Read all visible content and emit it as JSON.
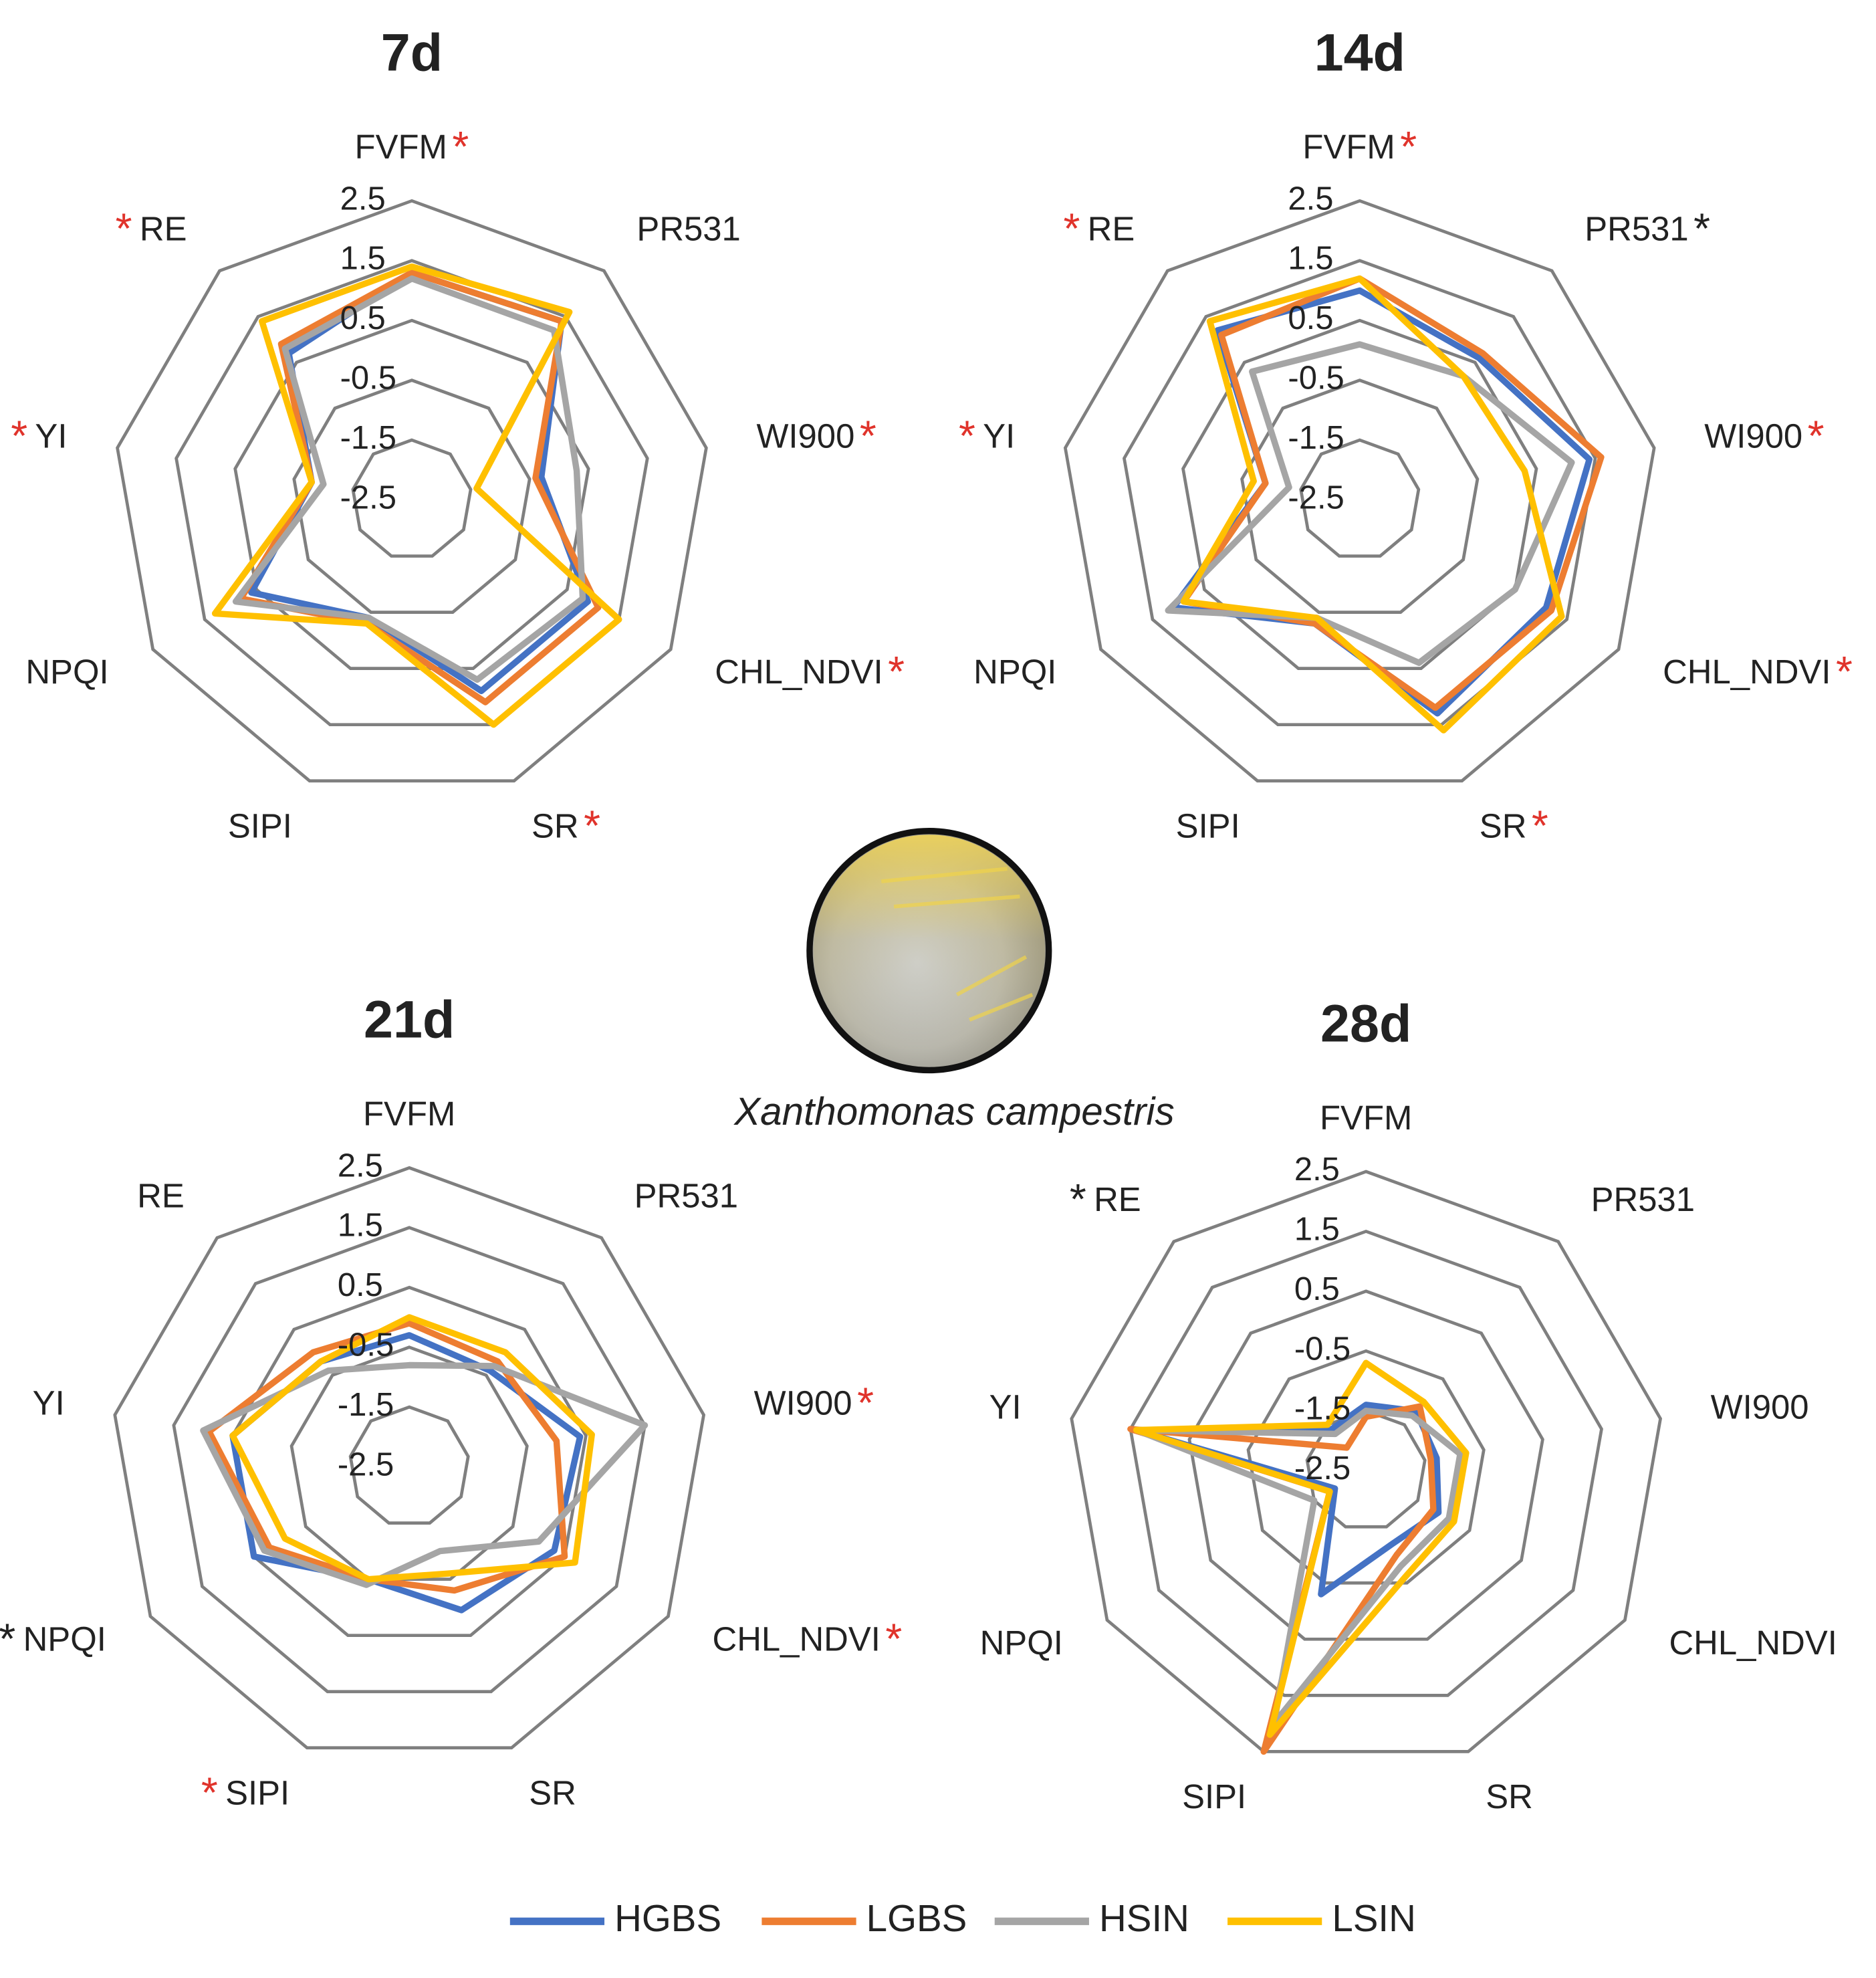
{
  "chart_data": [
    {
      "type": "radar",
      "title": "7d",
      "categories": [
        "FVFM",
        "PR531",
        "WI900",
        "CHL_NDVI",
        "SR",
        "SIPI",
        "NPQI",
        "YI",
        "RE"
      ],
      "marks": [
        {
          "text": "*",
          "color": "#e0332b"
        },
        null,
        {
          "text": "*",
          "color": "#e0332b"
        },
        {
          "text": "*",
          "color": "#e0332b"
        },
        {
          "text": "*",
          "color": "#e0332b"
        },
        null,
        null,
        {
          "text": "*",
          "color": "#e0332b"
        },
        {
          "text": "*",
          "color": "#e0332b"
        }
      ],
      "ylim": [
        -2.5,
        2.5
      ],
      "yticks": [
        2.5,
        1.5,
        0.5,
        -0.5,
        -1.5,
        -2.5
      ],
      "series": [
        {
          "name": "HGBS",
          "color": "#4472c4",
          "values": [
            1.3,
            1.4,
            -0.3,
            0.9,
            0.9,
            -0.4,
            0.6,
            -0.8,
            0.7
          ]
        },
        {
          "name": "LGBS",
          "color": "#ed7d31",
          "values": [
            1.3,
            1.4,
            -0.4,
            1.1,
            1.1,
            -0.3,
            0.8,
            -0.8,
            0.9
          ]
        },
        {
          "name": "HSIN",
          "color": "#a5a5a5",
          "values": [
            1.2,
            1.2,
            0.3,
            0.8,
            0.7,
            -0.4,
            0.9,
            -1.0,
            0.8
          ]
        },
        {
          "name": "LSIN",
          "color": "#ffc000",
          "values": [
            1.4,
            1.6,
            -1.4,
            1.5,
            1.5,
            -0.3,
            1.3,
            -0.8,
            1.4
          ]
        }
      ]
    },
    {
      "type": "radar",
      "title": "14d",
      "categories": [
        "FVFM",
        "PR531",
        "WI900",
        "CHL_NDVI",
        "SR",
        "SIPI",
        "NPQI",
        "YI",
        "RE"
      ],
      "marks": [
        {
          "text": "*",
          "color": "#e0332b"
        },
        {
          "text": "*",
          "color": "#222222"
        },
        {
          "text": "*",
          "color": "#e0332b"
        },
        {
          "text": "*",
          "color": "#e0332b"
        },
        {
          "text": "*",
          "color": "#e0332b"
        },
        null,
        null,
        {
          "text": "*",
          "color": "#e0332b"
        },
        {
          "text": "*",
          "color": "#e0332b"
        }
      ],
      "ylim": [
        -2.5,
        2.5
      ],
      "yticks": [
        2.5,
        1.5,
        0.5,
        -0.5,
        -1.5,
        -2.5
      ],
      "series": [
        {
          "name": "HGBS",
          "color": "#4472c4",
          "values": [
            1.0,
            0.6,
            1.4,
            1.1,
            1.3,
            -0.3,
            1.1,
            -0.9,
            1.2
          ]
        },
        {
          "name": "LGBS",
          "color": "#ed7d31",
          "values": [
            1.2,
            0.7,
            1.6,
            1.2,
            1.2,
            -0.3,
            0.9,
            -0.9,
            1.1
          ]
        },
        {
          "name": "HSIN",
          "color": "#a5a5a5",
          "values": [
            0.1,
            0.2,
            1.1,
            0.5,
            0.4,
            -0.4,
            1.2,
            -1.3,
            0.3
          ]
        },
        {
          "name": "LSIN",
          "color": "#ffc000",
          "values": [
            1.2,
            0.2,
            0.3,
            1.4,
            1.6,
            -0.4,
            0.9,
            -0.7,
            1.4
          ]
        }
      ]
    },
    {
      "type": "radar",
      "title": "21d",
      "categories": [
        "FVFM",
        "PR531",
        "WI900",
        "CHL_NDVI",
        "SR",
        "SIPI",
        "NPQI",
        "YI",
        "RE"
      ],
      "marks": [
        null,
        null,
        {
          "text": "*",
          "color": "#e0332b"
        },
        {
          "text": "*",
          "color": "#e0332b"
        },
        null,
        {
          "text": "*",
          "color": "#e0332b"
        },
        {
          "text": "*",
          "color": "#222222"
        },
        null,
        null
      ],
      "ylim": [
        -2.5,
        2.5
      ],
      "yticks": [
        2.5,
        1.5,
        0.5,
        -0.5,
        -1.5,
        -2.5
      ],
      "series": [
        {
          "name": "HGBS",
          "color": "#4472c4",
          "values": [
            -0.3,
            -0.4,
            0.4,
            0.3,
            0.05,
            -0.5,
            0.5,
            0.5,
            -0.2
          ]
        },
        {
          "name": "LGBS",
          "color": "#ed7d31",
          "values": [
            -0.1,
            -0.2,
            0.0,
            0.5,
            -0.3,
            -0.5,
            0.2,
            0.9,
            0.0
          ]
        },
        {
          "name": "HSIN",
          "color": "#a5a5a5",
          "values": [
            -0.8,
            -0.3,
            1.5,
            0.0,
            -1.0,
            -0.4,
            0.3,
            1.0,
            -0.4
          ]
        },
        {
          "name": "LSIN",
          "color": "#ffc000",
          "values": [
            0.0,
            0.0,
            0.6,
            0.7,
            -0.6,
            -0.5,
            -0.1,
            0.5,
            -0.2
          ]
        }
      ]
    },
    {
      "type": "radar",
      "title": "28d",
      "categories": [
        "FVFM",
        "PR531",
        "WI900",
        "CHL_NDVI",
        "SR",
        "SIPI",
        "NPQI",
        "YI",
        "RE"
      ],
      "marks": [
        null,
        null,
        null,
        null,
        null,
        null,
        null,
        null,
        {
          "text": "*",
          "color": "#222222"
        }
      ],
      "ylim": [
        -2.5,
        2.5
      ],
      "yticks": [
        2.5,
        1.5,
        0.5,
        -0.5,
        -1.5,
        -2.5
      ],
      "series": [
        {
          "name": "HGBS",
          "color": "#4472c4",
          "values": [
            -1.4,
            -1.2,
            -1.3,
            -1.1,
            -1.2,
            -0.3,
            -1.9,
            1.4,
            -1.6
          ]
        },
        {
          "name": "LGBS",
          "color": "#ed7d31",
          "values": [
            -1.6,
            -1.1,
            -1.4,
            -1.2,
            -1.0,
            2.5,
            -1.8,
            1.5,
            -2.0
          ]
        },
        {
          "name": "HSIN",
          "color": "#a5a5a5",
          "values": [
            -1.5,
            -1.3,
            -0.9,
            -0.9,
            -0.8,
            2.0,
            -1.5,
            1.4,
            -1.7
          ]
        },
        {
          "name": "LSIN",
          "color": "#ffc000",
          "values": [
            -0.7,
            -1.0,
            -0.8,
            -0.8,
            -0.6,
            2.2,
            -1.8,
            1.4,
            -1.5
          ]
        }
      ]
    }
  ],
  "caption": "Xanthomonas campestris"
}
